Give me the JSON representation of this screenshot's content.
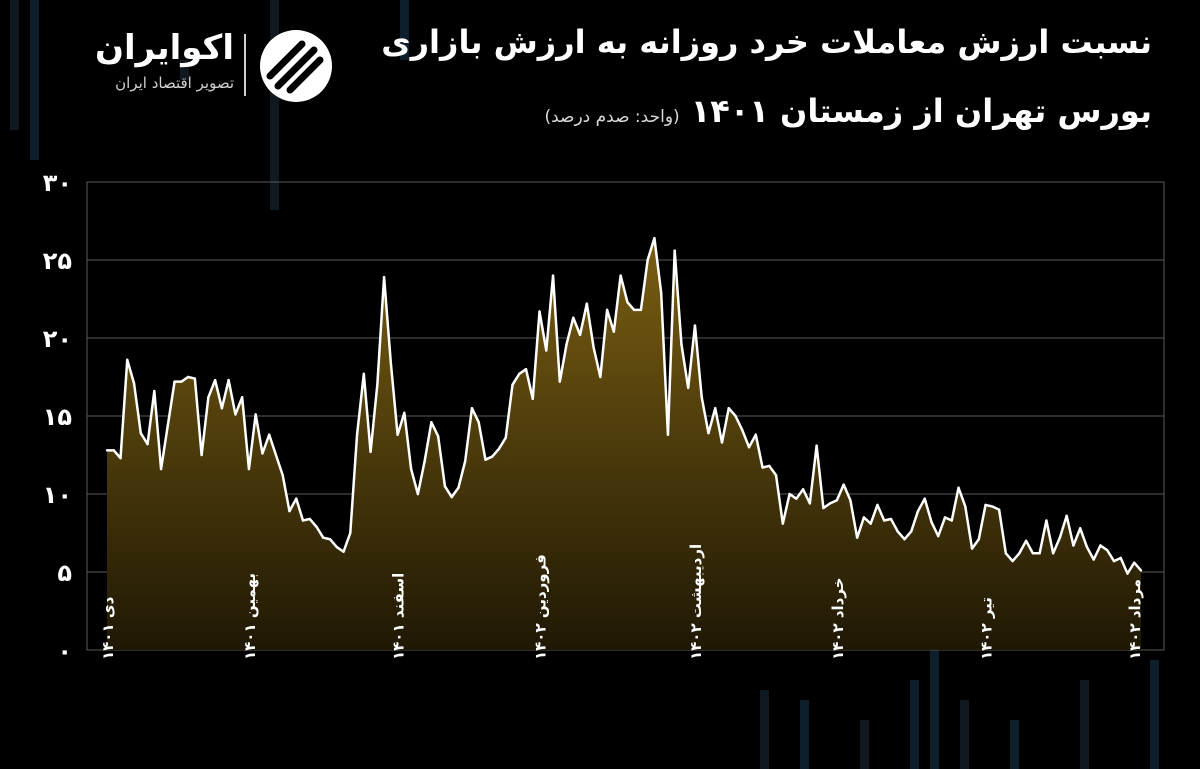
{
  "header": {
    "title_line1": "نسبت ارزش معاملات خرد روزانه به ارزش بازاری",
    "title_line2": "بورس تهران از زمستان ۱۴۰۱",
    "unit": "(واحد: صدم درصد)"
  },
  "brand": {
    "name": "اکوایران",
    "tagline": "تصویر اقتصاد ایران"
  },
  "colors": {
    "background": "#000000",
    "line": "#ffffff",
    "fill_top": "#7a5e12",
    "fill_bottom": "#1f1804",
    "grid": "#5a5a5a"
  },
  "chart_data": {
    "type": "area",
    "title": "نسبت ارزش معاملات خرد روزانه به ارزش بازاری بورس تهران از زمستان ۱۴۰۱",
    "ylabel": "",
    "xlabel": "",
    "ylim": [
      0,
      30
    ],
    "yticks": [
      0,
      5,
      10,
      15,
      20,
      25,
      30
    ],
    "ytick_labels": [
      "۰",
      "۵",
      "۱۰",
      "۱۵",
      "۲۰",
      "۲۵",
      "۳۰"
    ],
    "grid": true,
    "x_tick_labels": [
      {
        "index": 0,
        "label": "دی ۱۴۰۱"
      },
      {
        "index": 21,
        "label": "بهمین ۱۴۰۱"
      },
      {
        "index": 43,
        "label": "اسفند ۱۴۰۱"
      },
      {
        "index": 64,
        "label": "فروردین ۱۴۰۲"
      },
      {
        "index": 87,
        "label": "اردیبهشت ۱۴۰۲"
      },
      {
        "index": 108,
        "label": "خرداد ۱۴۰۲"
      },
      {
        "index": 130,
        "label": "تیر ۱۴۰۲"
      },
      {
        "index": 152,
        "label": "مرداد ۱۴۰۲"
      }
    ],
    "values": [
      12.8,
      12.8,
      12.3,
      18.6,
      17.1,
      13.9,
      13.2,
      16.6,
      11.6,
      14.4,
      17.2,
      17.2,
      17.5,
      17.4,
      12.5,
      16.2,
      17.3,
      15.5,
      17.3,
      15.1,
      16.2,
      11.6,
      15.1,
      12.6,
      13.8,
      12.5,
      11.2,
      8.9,
      9.7,
      8.3,
      8.4,
      7.9,
      7.2,
      7.1,
      6.6,
      6.3,
      7.5,
      13.8,
      17.7,
      12.7,
      17.0,
      23.9,
      18.4,
      13.8,
      15.2,
      11.6,
      10.0,
      12.1,
      14.6,
      13.7,
      10.5,
      9.8,
      10.4,
      12.1,
      15.5,
      14.6,
      12.2,
      12.4,
      12.9,
      13.6,
      17.0,
      17.7,
      18.0,
      16.1,
      21.7,
      19.2,
      24.0,
      17.2,
      19.6,
      21.3,
      20.2,
      22.2,
      19.4,
      17.5,
      21.8,
      20.4,
      24.0,
      22.3,
      21.8,
      21.8,
      25.0,
      26.4,
      22.9,
      13.8,
      25.6,
      19.6,
      16.8,
      20.8,
      16.2,
      13.9,
      15.5,
      13.3,
      15.5,
      15.0,
      14.1,
      13.0,
      13.8,
      11.7,
      11.8,
      11.2,
      8.1,
      10.0,
      9.7,
      10.3,
      9.4,
      13.1,
      9.1,
      9.4,
      9.6,
      10.6,
      9.6,
      7.2,
      8.5,
      8.1,
      9.3,
      8.3,
      8.4,
      7.6,
      7.1,
      7.6,
      8.9,
      9.7,
      8.2,
      7.3,
      8.5,
      8.3,
      10.4,
      9.2,
      6.5,
      7.1,
      9.3,
      9.2,
      9.0,
      6.2,
      5.7,
      6.2,
      7.0,
      6.2,
      6.2,
      8.3,
      6.2,
      7.2,
      8.6,
      6.7,
      7.8,
      6.6,
      5.8,
      6.7,
      6.4,
      5.7,
      5.9,
      4.9,
      5.6,
      5.1
    ]
  }
}
